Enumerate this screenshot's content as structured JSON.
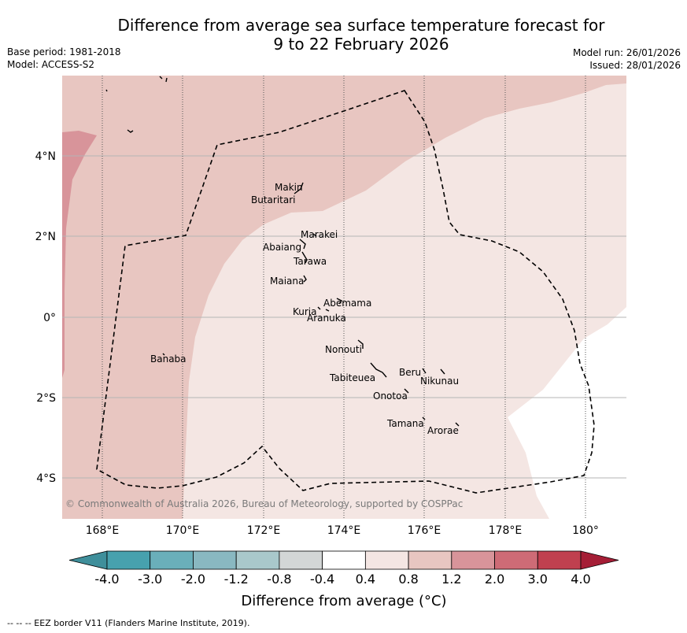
{
  "title_line1": "Difference from average sea surface temperature forecast for",
  "title_line2": "9 to 22 February 2026",
  "base_period": "Base period: 1981-2018",
  "model": "Model: ACCESS-S2",
  "model_run": "Model run: 26/01/2026",
  "issued": "Issued: 28/01/2026",
  "copyright": "© Commonwealth of Australia 2026, Bureau of Meteorology, supported by COSPPac",
  "lon_labels": [
    "168°E",
    "170°E",
    "172°E",
    "174°E",
    "176°E",
    "178°E",
    "180°"
  ],
  "lat_labels": [
    "4°N",
    "2°N",
    "0°",
    "2°S",
    "4°S"
  ],
  "islands": [
    {
      "name": "Makin"
    },
    {
      "name": "Butaritari"
    },
    {
      "name": "Marakei"
    },
    {
      "name": "Abaiang"
    },
    {
      "name": "Tarawa"
    },
    {
      "name": "Maiana"
    },
    {
      "name": "Abemama"
    },
    {
      "name": "Kuria"
    },
    {
      "name": "Aranuka"
    },
    {
      "name": "Banaba"
    },
    {
      "name": "Nonouti"
    },
    {
      "name": "Tabiteuea"
    },
    {
      "name": "Beru"
    },
    {
      "name": "Nikunau"
    },
    {
      "name": "Onotoa"
    },
    {
      "name": "Tamana"
    },
    {
      "name": "Arorae"
    }
  ],
  "colorbar": {
    "tick_labels": [
      "-4.0",
      "-3.0",
      "-2.0",
      "-1.2",
      "-0.8",
      "-0.4",
      "0.4",
      "0.8",
      "1.2",
      "2.0",
      "3.0",
      "4.0"
    ],
    "colors": [
      "#3f8f9b",
      "#47a1ae",
      "#6aafba",
      "#89b8c1",
      "#a9c8cb",
      "#d3d6d6",
      "#ffffff",
      "#f4e6e3",
      "#e8c6c1",
      "#d8949a",
      "#ce6b76",
      "#c0404f",
      "#a51e36"
    ],
    "label": "Difference from average (°C)"
  },
  "footnote": "--  --  -- EEZ border V11 (Flanders Marine Institute, 2019)."
}
